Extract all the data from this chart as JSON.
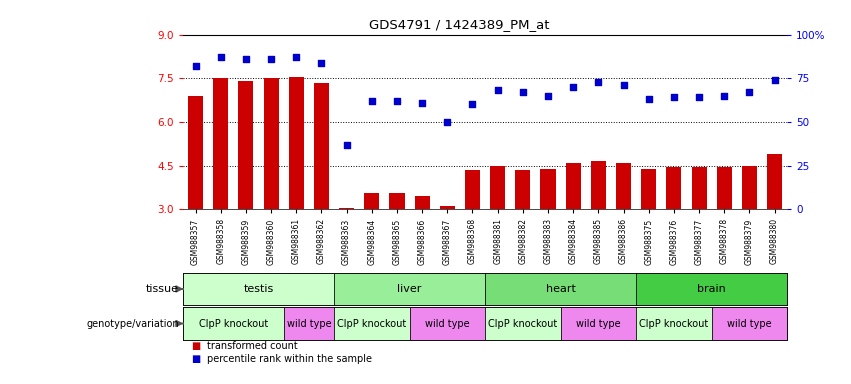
{
  "title": "GDS4791 / 1424389_PM_at",
  "samples": [
    "GSM988357",
    "GSM988358",
    "GSM988359",
    "GSM988360",
    "GSM988361",
    "GSM988362",
    "GSM988363",
    "GSM988364",
    "GSM988365",
    "GSM988366",
    "GSM988367",
    "GSM988368",
    "GSM988381",
    "GSM988382",
    "GSM988383",
    "GSM988384",
    "GSM988385",
    "GSM988386",
    "GSM988375",
    "GSM988376",
    "GSM988377",
    "GSM988378",
    "GSM988379",
    "GSM988380"
  ],
  "bar_values": [
    6.9,
    7.5,
    7.4,
    7.5,
    7.55,
    7.35,
    3.05,
    3.55,
    3.55,
    3.45,
    3.1,
    4.35,
    4.5,
    4.35,
    4.4,
    4.6,
    4.65,
    4.6,
    4.4,
    4.45,
    4.45,
    4.45,
    4.5,
    4.9
  ],
  "percentile_values": [
    82,
    87,
    86,
    86,
    87,
    84,
    37,
    62,
    62,
    61,
    50,
    60,
    68,
    67,
    65,
    70,
    73,
    71,
    63,
    64,
    64,
    65,
    67,
    74
  ],
  "ylim_left": [
    3,
    9
  ],
  "ylim_right": [
    0,
    100
  ],
  "yticks_left": [
    3,
    4.5,
    6,
    7.5,
    9
  ],
  "yticks_right": [
    0,
    25,
    50,
    75,
    100
  ],
  "bar_color": "#cc0000",
  "dot_color": "#0000cc",
  "tissue_labels": [
    "testis",
    "liver",
    "heart",
    "brain"
  ],
  "tissue_colors": [
    "#ccffcc",
    "#99ee99",
    "#77dd77",
    "#44cc44"
  ],
  "tissue_ranges": [
    [
      0,
      5
    ],
    [
      6,
      11
    ],
    [
      12,
      17
    ],
    [
      18,
      23
    ]
  ],
  "geno_ranges": [
    [
      0,
      3,
      "#ccffcc",
      "ClpP knockout"
    ],
    [
      4,
      5,
      "#ee88ee",
      "wild type"
    ],
    [
      6,
      8,
      "#ccffcc",
      "ClpP knockout"
    ],
    [
      9,
      11,
      "#ee88ee",
      "wild type"
    ],
    [
      12,
      14,
      "#ccffcc",
      "ClpP knockout"
    ],
    [
      15,
      17,
      "#ee88ee",
      "wild type"
    ],
    [
      18,
      20,
      "#ccffcc",
      "ClpP knockout"
    ],
    [
      21,
      23,
      "#ee88ee",
      "wild type"
    ]
  ],
  "dotted_lines": [
    4.5,
    6.0,
    7.5
  ],
  "bar_width": 0.6
}
